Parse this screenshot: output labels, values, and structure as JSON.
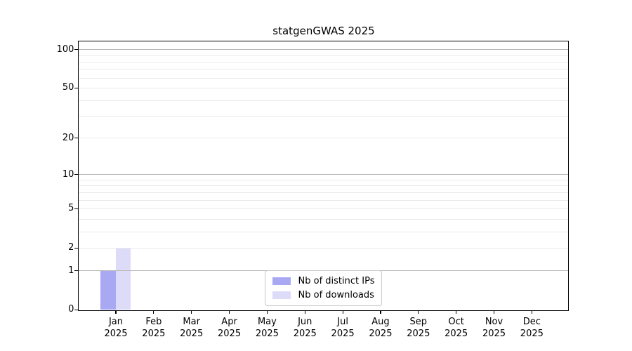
{
  "figure": {
    "background": "#ffffff"
  },
  "chart_data": {
    "type": "bar",
    "title": "statgenGWAS 2025",
    "categories": [
      "Jan",
      "Feb",
      "Mar",
      "Apr",
      "May",
      "Jun",
      "Jul",
      "Aug",
      "Sep",
      "Oct",
      "Nov",
      "Dec"
    ],
    "category_year": "2025",
    "series": [
      {
        "name": "Nb of distinct IPs",
        "color": "#a8a8f3",
        "values": [
          1,
          0,
          0,
          0,
          0,
          0,
          0,
          0,
          0,
          0,
          0,
          0
        ]
      },
      {
        "name": "Nb of downloads",
        "color": "#dcdcf8",
        "values": [
          2,
          0,
          0,
          0,
          0,
          0,
          0,
          0,
          0,
          0,
          0,
          0
        ]
      }
    ],
    "xlabel": "",
    "ylabel": "",
    "y_scale": "log10(1+y)",
    "ylim": [
      0,
      115
    ],
    "y_tick_labels": [
      0,
      1,
      2,
      5,
      10,
      20,
      50,
      100
    ],
    "y_decade_gridlines": [
      1,
      10,
      100
    ],
    "y_minor_gridlines": [
      2,
      3,
      4,
      5,
      6,
      7,
      8,
      9,
      20,
      30,
      40,
      50,
      60,
      70,
      80,
      90
    ],
    "grid": "on",
    "legend_position": "lower center"
  },
  "colors": {
    "decade_grid": "#b8b8b8",
    "minor_grid": "#e9e9e9",
    "axis": "#000000",
    "legend_border": "#c9c9c9"
  }
}
